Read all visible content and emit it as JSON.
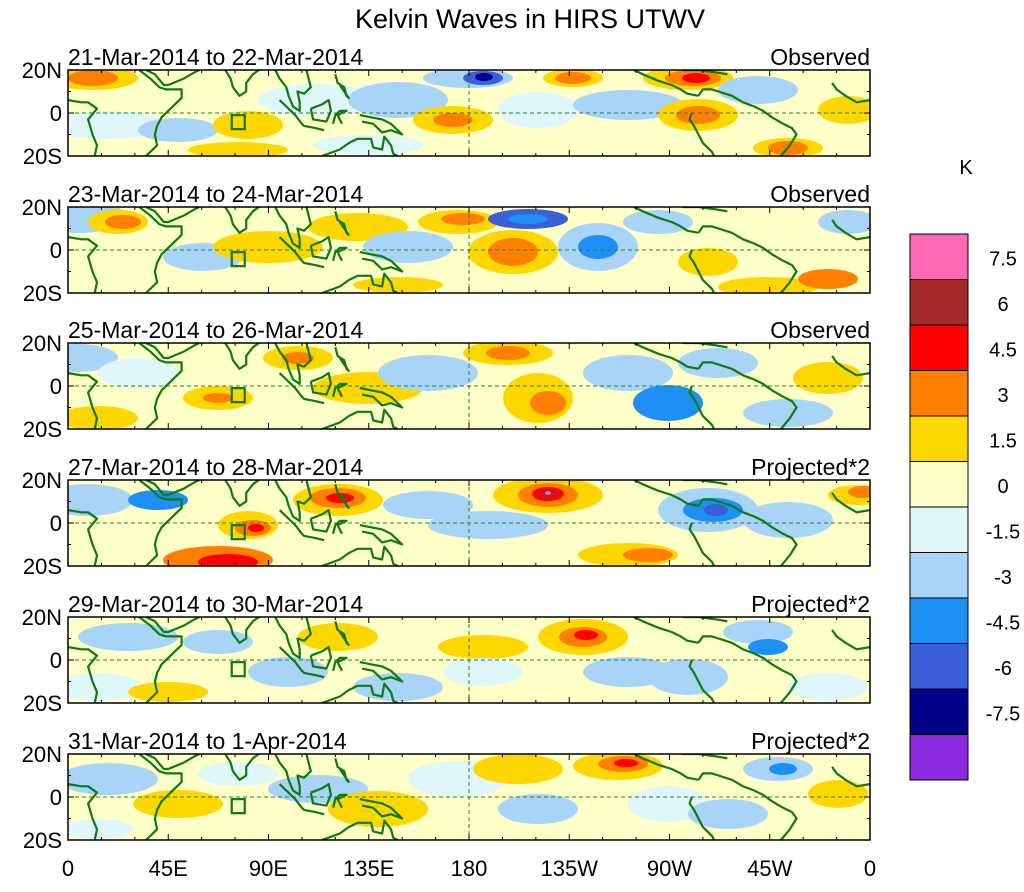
{
  "title": "Kelvin Waves in HIRS UTWV",
  "panels": [
    {
      "date_range": "21-Mar-2014 to 22-Mar-2014",
      "label": "Observed"
    },
    {
      "date_range": "23-Mar-2014 to 24-Mar-2014",
      "label": "Observed"
    },
    {
      "date_range": "25-Mar-2014 to 26-Mar-2014",
      "label": "Observed"
    },
    {
      "date_range": "27-Mar-2014 to 28-Mar-2014",
      "label": "Projected*2"
    },
    {
      "date_range": "29-Mar-2014 to 30-Mar-2014",
      "label": "Projected*2"
    },
    {
      "date_range": "31-Mar-2014 to 1-Apr-2014",
      "label": "Projected*2"
    }
  ],
  "lat_labels": [
    "20N",
    "0",
    "20S"
  ],
  "lon_labels": [
    "0",
    "45E",
    "90E",
    "135E",
    "180",
    "135W",
    "90W",
    "45W",
    "0"
  ],
  "colorbar": {
    "units": "K",
    "labels": [
      "7.5",
      "6",
      "4.5",
      "3",
      "1.5",
      "0",
      "-1.5",
      "-3",
      "-4.5",
      "-6",
      "-7.5"
    ],
    "colors": [
      "#ff69b4",
      "#a52a2a",
      "#ff0000",
      "#ff7f00",
      "#ffd700",
      "#ffffc8",
      "#dff6fb",
      "#a8d4f8",
      "#1e8ff5",
      "#3a5fd8",
      "#00008b",
      "#8a2be2"
    ]
  },
  "colors": {
    "coastline": "#0f7a0f",
    "equator_line": "#2e7d32",
    "neutral": "#ffffc8",
    "warm_light": "#ffd700",
    "warm_mid": "#ff7f00",
    "warm_strong": "#ff0000",
    "warm_max": "#a52a2a",
    "pink": "#ff69b4",
    "cool_light": "#dff6fb",
    "cool_mid": "#a8d4f8",
    "cool_strong": "#1e8ff5",
    "cool_deep": "#3a5fd8",
    "navy": "#00008b"
  }
}
